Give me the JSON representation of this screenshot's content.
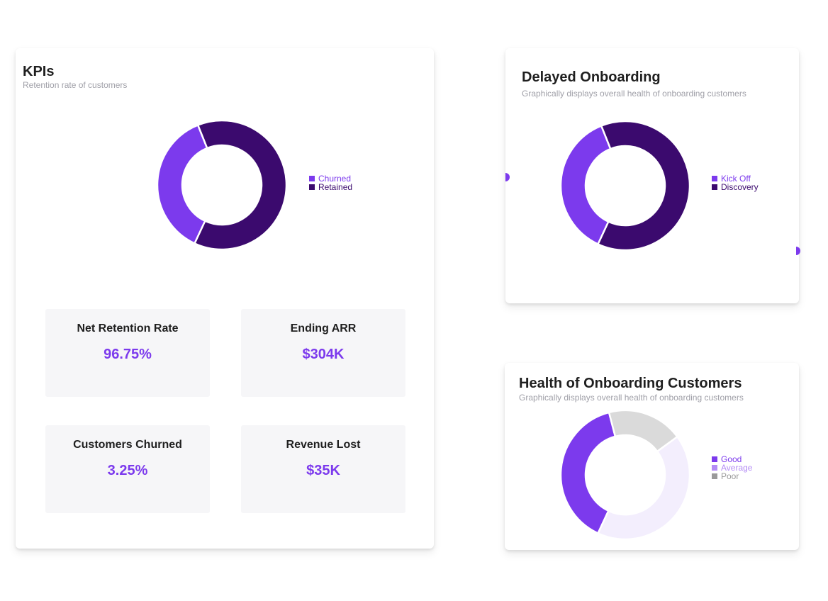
{
  "colors": {
    "purple": "#7c3aed",
    "deep_purple": "#3b0a6e",
    "light_purple": "#b48cf5",
    "pale_purple": "#f3eefd",
    "grey": "#dadada",
    "poor_label": "#9a9a9a"
  },
  "kpis": {
    "title": "KPIs",
    "subtitle": "Retention rate of customers",
    "stats": [
      {
        "label": "Net Retention Rate",
        "value": "96.75%"
      },
      {
        "label": "Ending ARR",
        "value": "$304K"
      },
      {
        "label": "Customers Churned",
        "value": "3.25%"
      },
      {
        "label": "Revenue Lost",
        "value": "$35K"
      }
    ]
  },
  "delayed": {
    "title": "Delayed Onboarding",
    "subtitle": "Graphically displays overall health of onboarding customers"
  },
  "health": {
    "title": "Health of Onboarding Customers",
    "subtitle": "Graphically displays overall health of onboarding customers"
  },
  "chart_data": [
    {
      "type": "pie",
      "categories": [
        "Churned",
        "Retained"
      ],
      "values": [
        37,
        63
      ],
      "title": "",
      "legend_position": "right"
    },
    {
      "type": "pie",
      "categories": [
        "Kick Off",
        "Discovery"
      ],
      "values": [
        37,
        63
      ],
      "title": "",
      "legend_position": "right"
    },
    {
      "type": "pie",
      "categories": [
        "Good",
        "Average",
        "Poor"
      ],
      "values": [
        39,
        42,
        19
      ],
      "title": "",
      "legend_position": "right"
    }
  ]
}
